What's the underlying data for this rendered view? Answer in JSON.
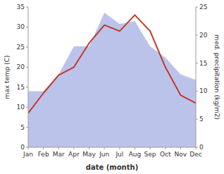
{
  "chart_data": {
    "type": "line",
    "xlabel": "date (month)",
    "ylabel": "max temp (C)",
    "y2label": "med. precipitation (kg/m2)",
    "categories": [
      "Jan",
      "Feb",
      "Mar",
      "Apr",
      "May",
      "Jun",
      "Jul",
      "Aug",
      "Sep",
      "Oct",
      "Nov",
      "Dec"
    ],
    "series": [
      {
        "type": "area",
        "axis": "y2",
        "color": "#b0b8e8",
        "values": [
          10.0,
          10.0,
          13.0,
          18.0,
          18.0,
          24.0,
          22.0,
          22.5,
          18.0,
          16.0,
          13.0,
          12.0
        ]
      },
      {
        "type": "line",
        "color": "#c0392b",
        "values": [
          8.5,
          13.5,
          18.0,
          20.0,
          26.0,
          30.5,
          29.0,
          33.0,
          29.0,
          20.0,
          13.0,
          11.0
        ]
      }
    ],
    "ylim": [
      0,
      35
    ],
    "yticks": [
      0,
      5,
      10,
      15,
      20,
      25,
      30,
      35
    ],
    "y2lim": [
      0,
      25
    ],
    "y2ticks": [
      0,
      5,
      10,
      15,
      20,
      25
    ],
    "grid": false
  }
}
